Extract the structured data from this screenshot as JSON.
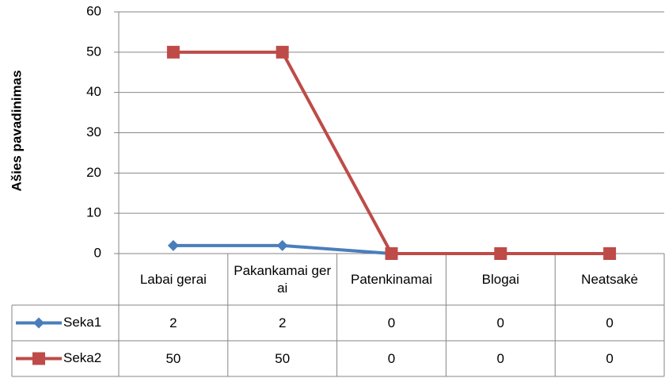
{
  "chart_data": {
    "type": "line",
    "y_label": "Ašies pavadinimas",
    "categories": [
      "Labai gerai",
      "Pakankamai gerai",
      "Patenkinamai",
      "Blogai",
      "Neatsakė"
    ],
    "series": [
      {
        "name": "Seka1",
        "color": "#4a7ebb",
        "marker": "diamond",
        "values": [
          2,
          2,
          0,
          0,
          0
        ]
      },
      {
        "name": "Seka2",
        "color": "#be4b48",
        "marker": "square",
        "values": [
          50,
          50,
          0,
          0,
          0
        ]
      }
    ],
    "ylim": [
      0,
      60
    ],
    "yticks": [
      0,
      10,
      20,
      30,
      40,
      50,
      60
    ],
    "grid": true,
    "data_table": true
  }
}
